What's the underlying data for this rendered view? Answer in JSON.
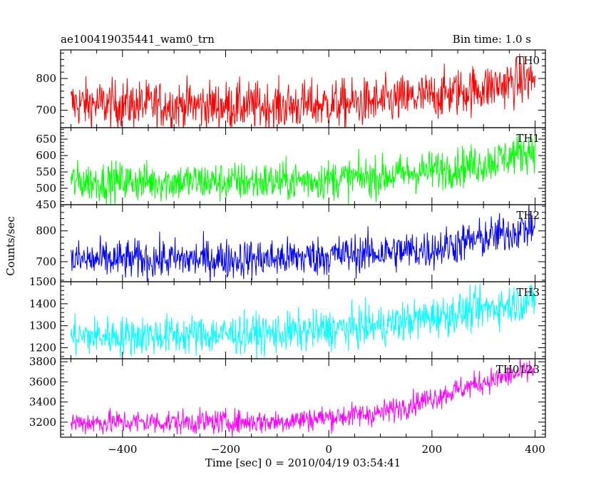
{
  "chart_data": {
    "type": "line",
    "title": "ae100419035441_wam0_trn",
    "subtitle": "Bin time: 1.0 s",
    "xlabel": "Time [sec] 0 = 2010/04/19 03:54:41",
    "ylabel": "Counts/sec",
    "xlim": [
      -520,
      420
    ],
    "x_ticks": [
      -400,
      -200,
      0,
      200,
      400
    ],
    "x_tick_labels": [
      "−400",
      "−200",
      "0",
      "200",
      "400"
    ],
    "bin_time_s": 1.0,
    "x_range": [
      -500,
      400
    ],
    "grid": false,
    "panels": [
      {
        "name": "TH0",
        "color": "#ff0000",
        "ylim": [
          645,
          890
        ],
        "yticks": [
          700,
          800
        ],
        "trend": [
          [
            -500,
            720
          ],
          [
            -100,
            712
          ],
          [
            100,
            725
          ],
          [
            200,
            745
          ],
          [
            300,
            770
          ],
          [
            400,
            800
          ]
        ],
        "noise": 38
      },
      {
        "name": "TH1",
        "color": "#00ff00",
        "ylim": [
          450,
          685
        ],
        "yticks": [
          450,
          500,
          550,
          600,
          650
        ],
        "trend": [
          [
            -500,
            520
          ],
          [
            -100,
            520
          ],
          [
            100,
            535
          ],
          [
            200,
            555
          ],
          [
            300,
            575
          ],
          [
            400,
            620
          ]
        ],
        "noise": 30
      },
      {
        "name": "TH2",
        "color": "#0000ff",
        "ylim": [
          635,
          885
        ],
        "yticks": [
          700,
          800
        ],
        "trend": [
          [
            -500,
            705
          ],
          [
            -100,
            710
          ],
          [
            100,
            730
          ],
          [
            200,
            740
          ],
          [
            300,
            775
          ],
          [
            400,
            815
          ]
        ],
        "noise": 32
      },
      {
        "name": "TH3",
        "color": "#00ffff",
        "ylim": [
          1150,
          1500
        ],
        "yticks": [
          1200,
          1300,
          1400,
          1500
        ],
        "trend": [
          [
            -500,
            1250
          ],
          [
            -100,
            1265
          ],
          [
            100,
            1300
          ],
          [
            200,
            1340
          ],
          [
            300,
            1375
          ],
          [
            400,
            1420
          ]
        ],
        "noise": 45
      },
      {
        "name": "TH0123",
        "color": "#ff00ff",
        "ylim": [
          3050,
          3830
        ],
        "yticks": [
          3200,
          3400,
          3600,
          3800
        ],
        "trend": [
          [
            -500,
            3195
          ],
          [
            -100,
            3205
          ],
          [
            100,
            3290
          ],
          [
            200,
            3440
          ],
          [
            300,
            3600
          ],
          [
            400,
            3720
          ]
        ],
        "noise": 60
      }
    ]
  }
}
